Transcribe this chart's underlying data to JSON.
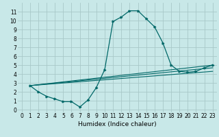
{
  "title": "",
  "xlabel": "Humidex (Indice chaleur)",
  "ylabel": "",
  "bg_color": "#c8e8e8",
  "grid_color": "#a8c8c8",
  "line_color": "#006868",
  "xlim": [
    -0.5,
    23.5
  ],
  "ylim": [
    -0.3,
    12
  ],
  "xticks": [
    0,
    1,
    2,
    3,
    4,
    5,
    6,
    7,
    8,
    9,
    10,
    11,
    12,
    13,
    14,
    15,
    16,
    17,
    18,
    19,
    20,
    21,
    22,
    23
  ],
  "yticks": [
    0,
    1,
    2,
    3,
    4,
    5,
    6,
    7,
    8,
    9,
    10,
    11
  ],
  "curve1_x": [
    1,
    2,
    3,
    4,
    5,
    6,
    7,
    8,
    9,
    10,
    11,
    12,
    13,
    14,
    15,
    16,
    17,
    18,
    19,
    20,
    21,
    22,
    23
  ],
  "curve1_y": [
    2.7,
    2.0,
    1.5,
    1.2,
    0.9,
    0.9,
    0.3,
    1.1,
    2.5,
    4.5,
    9.9,
    10.4,
    11.1,
    11.1,
    10.2,
    9.3,
    7.5,
    5.0,
    4.3,
    4.2,
    4.3,
    4.7,
    5.0
  ],
  "line1_x": [
    1,
    23
  ],
  "line1_y": [
    2.7,
    5.0
  ],
  "line2_x": [
    1,
    23
  ],
  "line2_y": [
    2.7,
    4.7
  ],
  "line3_x": [
    1,
    23
  ],
  "line3_y": [
    2.7,
    4.3
  ],
  "font_size": 5.5,
  "xlabel_fontsize": 6.5
}
